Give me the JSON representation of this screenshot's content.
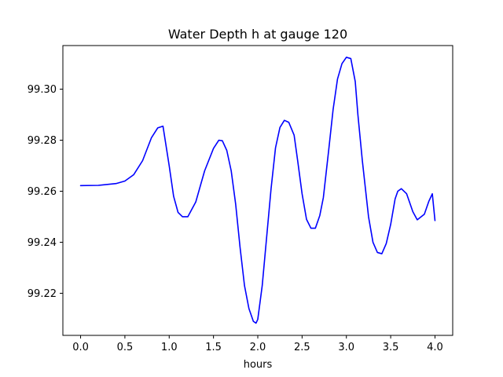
{
  "chart_data": {
    "type": "line",
    "title": "Water Depth h at gauge 120",
    "xlabel": "hours",
    "ylabel": "",
    "xlim": [
      -0.2,
      4.2
    ],
    "ylim": [
      99.2035,
      99.3171
    ],
    "xticks": [
      0.0,
      0.5,
      1.0,
      1.5,
      2.0,
      2.5,
      3.0,
      3.5,
      4.0
    ],
    "xtick_labels": [
      "0.0",
      "0.5",
      "1.0",
      "1.5",
      "2.0",
      "2.5",
      "3.0",
      "3.5",
      "4.0"
    ],
    "yticks": [
      99.22,
      99.24,
      99.26,
      99.28,
      99.3
    ],
    "ytick_labels": [
      "99.22",
      "99.24",
      "99.26",
      "99.28",
      "99.30"
    ],
    "grid": false,
    "series": [
      {
        "color": "#0000ff",
        "x": [
          0.0,
          0.2,
          0.4,
          0.5,
          0.6,
          0.7,
          0.8,
          0.87,
          0.93,
          1.0,
          1.05,
          1.1,
          1.15,
          1.21,
          1.3,
          1.4,
          1.5,
          1.56,
          1.6,
          1.65,
          1.7,
          1.75,
          1.8,
          1.85,
          1.9,
          1.95,
          1.98,
          2.0,
          2.05,
          2.1,
          2.15,
          2.2,
          2.25,
          2.3,
          2.35,
          2.41,
          2.45,
          2.5,
          2.55,
          2.6,
          2.65,
          2.7,
          2.74,
          2.8,
          2.85,
          2.9,
          2.95,
          3.0,
          3.05,
          3.1,
          3.13,
          3.18,
          3.25,
          3.3,
          3.35,
          3.4,
          3.45,
          3.5,
          3.55,
          3.58,
          3.62,
          3.68,
          3.75,
          3.8,
          3.88,
          3.93,
          3.97,
          4.0
        ],
        "y": [
          99.2622,
          99.2623,
          99.263,
          99.264,
          99.2665,
          99.272,
          99.281,
          99.2848,
          99.2855,
          99.27,
          99.258,
          99.2517,
          99.25,
          99.25,
          99.2558,
          99.268,
          99.2768,
          99.28,
          99.2798,
          99.276,
          99.268,
          99.255,
          99.238,
          99.223,
          99.214,
          99.209,
          99.2083,
          99.2098,
          99.223,
          99.242,
          99.261,
          99.277,
          99.285,
          99.2878,
          99.287,
          99.282,
          99.272,
          99.259,
          99.249,
          99.2455,
          99.2455,
          99.2505,
          99.2575,
          99.276,
          99.292,
          99.304,
          99.31,
          99.3125,
          99.312,
          99.303,
          99.29,
          99.272,
          99.25,
          99.24,
          99.236,
          99.2355,
          99.2395,
          99.247,
          99.257,
          99.26,
          99.261,
          99.259,
          99.252,
          99.2488,
          99.251,
          99.256,
          99.259,
          99.2485
        ]
      }
    ]
  }
}
